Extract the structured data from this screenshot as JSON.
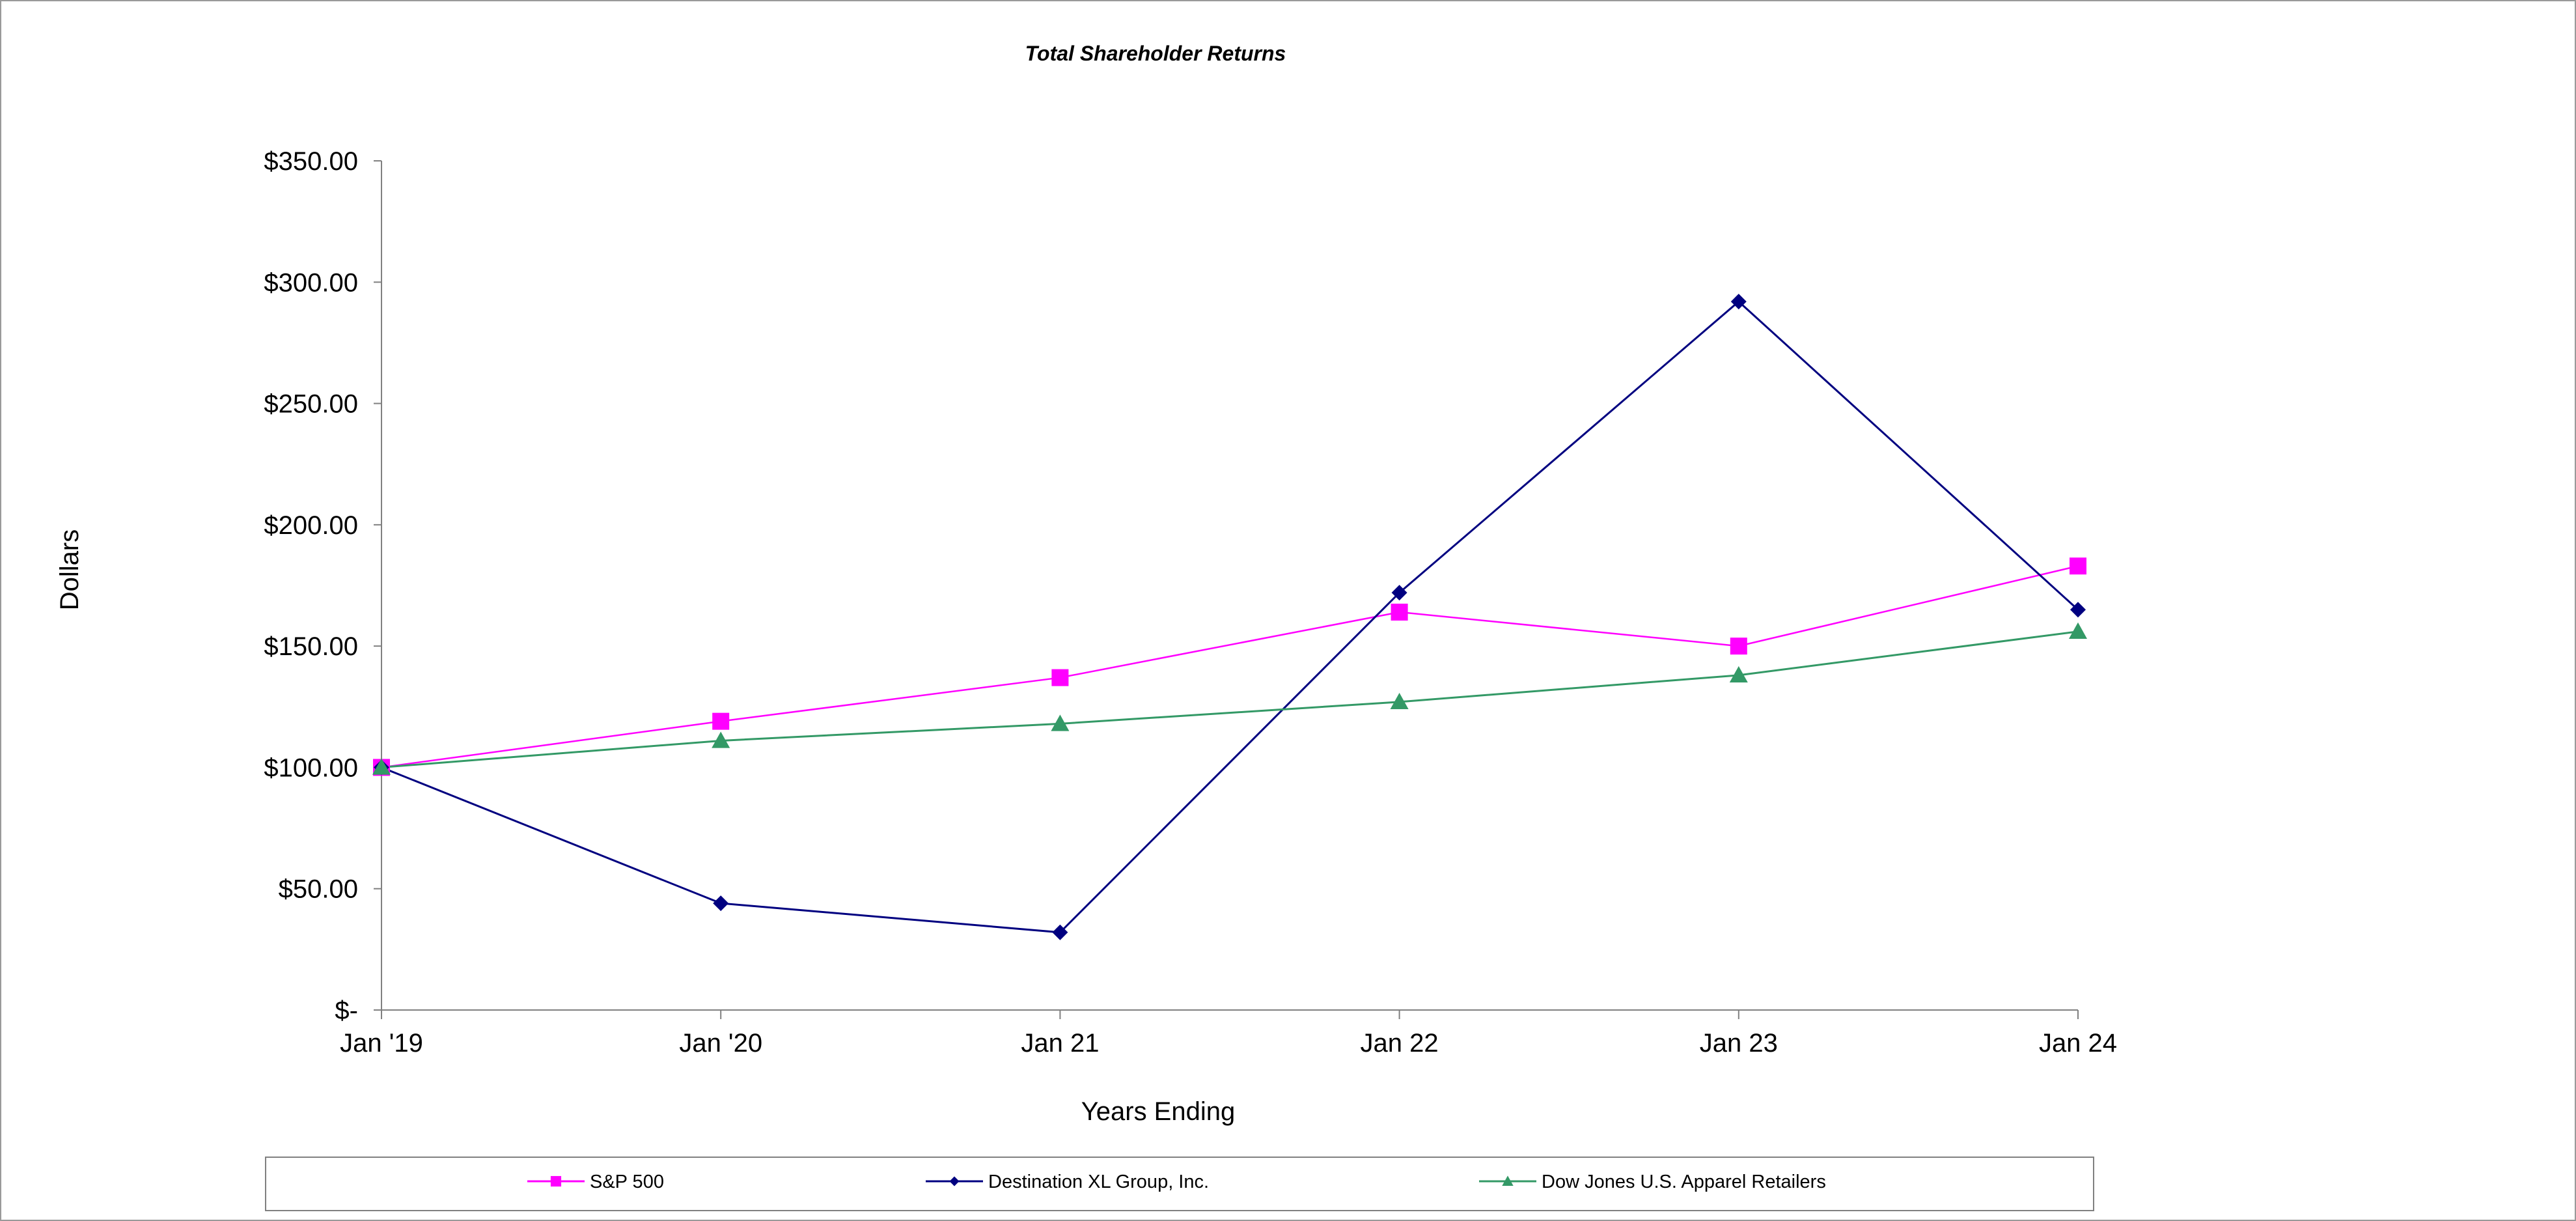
{
  "chart_data": {
    "type": "line",
    "title": "Total Shareholder Returns",
    "xlabel": "Years Ending",
    "ylabel": "Dollars",
    "categories": [
      "Jan '19",
      "Jan '20",
      "Jan 21",
      "Jan 22",
      "Jan 23",
      "Jan 24"
    ],
    "y_ticks": [
      0,
      50,
      100,
      150,
      200,
      250,
      300,
      350
    ],
    "y_tick_labels": [
      "$-",
      "$50.00",
      "$100.00",
      "$150.00",
      "$200.00",
      "$250.00",
      "$300.00",
      "$350.00"
    ],
    "ylim": [
      0,
      350
    ],
    "grid": false,
    "legend_position": "bottom",
    "series": [
      {
        "name": "S&P 500",
        "color": "#ff00ff",
        "marker": "square",
        "values": [
          100,
          119,
          137,
          164,
          150,
          183
        ]
      },
      {
        "name": "Destination XL Group, Inc.",
        "color": "#000080",
        "marker": "diamond",
        "values": [
          100,
          44,
          32,
          172,
          292,
          165
        ]
      },
      {
        "name": "Dow Jones U.S. Apparel Retailers",
        "color": "#339966",
        "marker": "triangle",
        "values": [
          100,
          111,
          118,
          127,
          138,
          156
        ]
      }
    ]
  }
}
